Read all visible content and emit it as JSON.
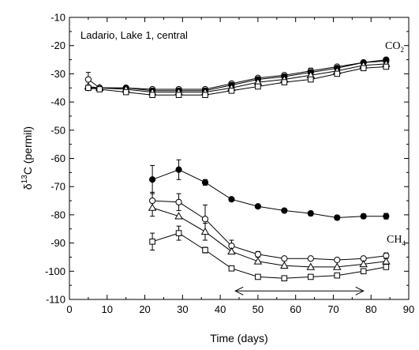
{
  "chart_data": {
    "type": "scatter",
    "title": "",
    "annotation": "Ladario, Lake 1, central",
    "xlabel": "Time (days)",
    "ylabel_main": "δ",
    "ylabel_sup": "13",
    "ylabel_rest": "C (permil)",
    "xlim": [
      0,
      90
    ],
    "ylim": [
      -110,
      -10
    ],
    "xticks": [
      0,
      10,
      20,
      30,
      40,
      50,
      60,
      70,
      80,
      90
    ],
    "yticks": [
      -110,
      -100,
      -90,
      -80,
      -70,
      -60,
      -50,
      -40,
      -30,
      -20,
      -10
    ],
    "grid": false,
    "group_labels": {
      "co2": {
        "main": "CO",
        "sub": "2"
      },
      "ch4": {
        "main": "CH",
        "sub": "4"
      }
    },
    "range_arrow": {
      "x_start": 44,
      "x_end": 78,
      "y": -107
    },
    "series": [
      {
        "group": "co2",
        "marker": "open-circle",
        "x": [
          5,
          8,
          15,
          22,
          29,
          36,
          43,
          50,
          57,
          64,
          71,
          78,
          84
        ],
        "y": [
          -32,
          -35,
          -35,
          -35.5,
          -35.5,
          -35.5,
          -33.5,
          -31.5,
          -30.5,
          -29,
          -27.5,
          -26,
          -25.5
        ],
        "err": [
          2.5,
          0,
          0,
          0,
          0,
          0,
          0,
          0,
          0,
          1,
          0,
          0,
          1
        ]
      },
      {
        "group": "co2",
        "marker": "filled-circle",
        "x": [
          5,
          8,
          15,
          22,
          29,
          36,
          43,
          50,
          57,
          64,
          71,
          78,
          84
        ],
        "y": [
          -35,
          -35,
          -35,
          -36,
          -36,
          -36,
          -34,
          -32,
          -31,
          -29.5,
          -28,
          -26,
          -25
        ],
        "err": [
          0,
          0,
          0,
          0,
          0,
          0,
          0,
          0,
          0,
          0,
          0,
          0,
          0
        ]
      },
      {
        "group": "co2",
        "marker": "open-triangle",
        "x": [
          5,
          8,
          15,
          22,
          29,
          36,
          43,
          50,
          57,
          64,
          71,
          78,
          84
        ],
        "y": [
          -34.5,
          -35,
          -35.5,
          -36.5,
          -36.5,
          -36.5,
          -35,
          -33,
          -32,
          -30.5,
          -29,
          -27,
          -26.5
        ],
        "err": [
          0,
          0,
          0,
          0,
          0,
          0,
          0,
          0,
          0,
          0,
          0,
          0,
          0
        ]
      },
      {
        "group": "co2",
        "marker": "open-square",
        "x": [
          5,
          8,
          15,
          22,
          29,
          36,
          43,
          50,
          57,
          64,
          71,
          78,
          84
        ],
        "y": [
          -35,
          -35.5,
          -36.5,
          -37.5,
          -37.5,
          -37.5,
          -36,
          -34.5,
          -33,
          -32,
          -30,
          -28,
          -27.5
        ],
        "err": [
          0,
          0,
          0,
          0,
          0,
          0,
          0,
          0,
          0,
          0,
          0,
          0,
          0
        ]
      },
      {
        "group": "ch4",
        "marker": "filled-circle",
        "x": [
          22,
          29,
          36,
          43,
          50,
          57,
          64,
          71,
          78,
          84
        ],
        "y": [
          -67.5,
          -64,
          -68.5,
          -74.5,
          -77,
          -78.5,
          -79.5,
          -81,
          -80.5,
          -80.5
        ],
        "err": [
          5,
          3.5,
          1,
          0,
          0,
          0,
          0.8,
          0.8,
          0.8,
          1
        ]
      },
      {
        "group": "ch4",
        "marker": "open-circle",
        "x": [
          22,
          29,
          36,
          43,
          50,
          57,
          64,
          71,
          78,
          84
        ],
        "y": [
          -75,
          -75.5,
          -81.5,
          -91,
          -94,
          -95.5,
          -95.5,
          -96,
          -95.5,
          -94.5
        ],
        "err": [
          3,
          3,
          5,
          2,
          1,
          0,
          0,
          0,
          0,
          1
        ]
      },
      {
        "group": "ch4",
        "marker": "open-triangle",
        "x": [
          22,
          29,
          36,
          43,
          50,
          57,
          64,
          71,
          78,
          84
        ],
        "y": [
          -77.5,
          -80.5,
          -86,
          -93,
          -96.5,
          -98,
          -98.5,
          -98.5,
          -97.5,
          -96.5
        ],
        "err": [
          3,
          0,
          3,
          0,
          0,
          0,
          0,
          0,
          0,
          0
        ]
      },
      {
        "group": "ch4",
        "marker": "open-square",
        "x": [
          22,
          29,
          36,
          43,
          50,
          57,
          64,
          71,
          78,
          84
        ],
        "y": [
          -89.5,
          -86.5,
          -92.5,
          -99,
          -102,
          -102.5,
          -102,
          -101.5,
          -100,
          -98.5
        ],
        "err": [
          3,
          2.5,
          1,
          0,
          0,
          0,
          0,
          0,
          0,
          0
        ]
      }
    ]
  }
}
